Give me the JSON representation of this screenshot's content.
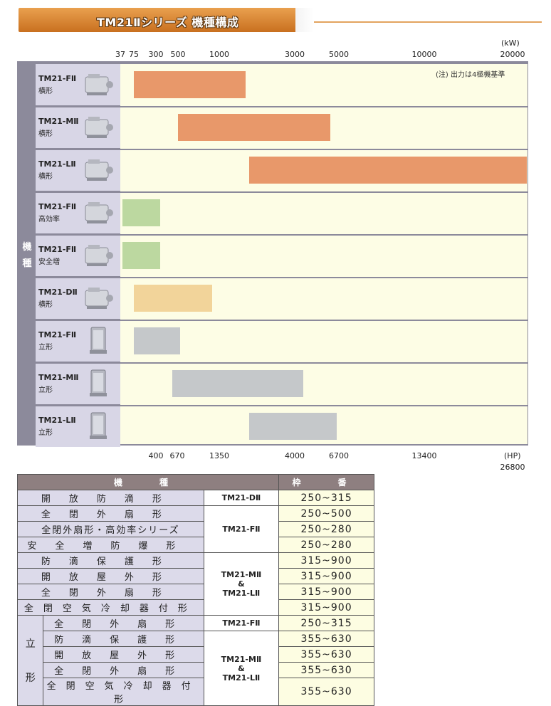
{
  "header": {
    "title": "TM21Ⅱシリーズ 機種構成"
  },
  "chart_data": {
    "type": "bar",
    "orientation": "horizontal-range",
    "unit_top": "(kW)",
    "unit_bottom": "(HP)",
    "top_ticks": [
      "37",
      "75",
      "300",
      "500",
      "1000",
      "3000",
      "5000",
      "10000",
      "20000"
    ],
    "bottom_ticks": [
      "400",
      "670",
      "1350",
      "4000",
      "6700",
      "13400",
      "26800"
    ],
    "side_label": [
      "機",
      "種"
    ],
    "note": "(注) 出力は4極機基準",
    "categories": [
      {
        "name": "TM21-FⅡ",
        "sub": "横形"
      },
      {
        "name": "TM21-MⅡ",
        "sub": "横形"
      },
      {
        "name": "TM21-LⅡ",
        "sub": "横形"
      },
      {
        "name": "TM21-FⅡ",
        "sub": "高効率"
      },
      {
        "name": "TM21-FⅡ",
        "sub": "安全増"
      },
      {
        "name": "TM21-DⅡ",
        "sub": "横形"
      },
      {
        "name": "TM21-FⅡ",
        "sub": "立形"
      },
      {
        "name": "TM21-MⅡ",
        "sub": "立形"
      },
      {
        "name": "TM21-LⅡ",
        "sub": "立形"
      }
    ],
    "ranges_kw": [
      [
        75,
        1700
      ],
      [
        500,
        4600
      ],
      [
        1800,
        20000
      ],
      [
        37,
        340
      ],
      [
        37,
        340
      ],
      [
        75,
        910
      ],
      [
        75,
        530
      ],
      [
        450,
        3400
      ],
      [
        1800,
        4900
      ]
    ],
    "colors": [
      "#e8986a",
      "#e8986a",
      "#e8986a",
      "#bcd8a0",
      "#bcd8a0",
      "#f2d49a",
      "#c5c8ca",
      "#c5c8ca",
      "#c5c8ca"
    ]
  },
  "table": {
    "headers": [
      "機　種",
      "枠　番"
    ],
    "rows": [
      {
        "type": "開放防滴形",
        "model": "TM21-DⅡ",
        "frame": "250~315"
      },
      {
        "type": "全閉外扇形",
        "model": "",
        "frame": "250~500"
      },
      {
        "type": "全閉外扇形・高効率シリーズ",
        "model": "TM21-FⅡ",
        "frame": "250~280"
      },
      {
        "type": "安全増防爆形",
        "model": "",
        "frame": "250~280"
      },
      {
        "type": "防滴保護形",
        "model": "",
        "frame": "315~900"
      },
      {
        "type": "開放屋外形",
        "model": "TM21-MⅡ",
        "frame": "315~900"
      },
      {
        "type": "全閉外扇形",
        "model": "&",
        "frame": "315~900"
      },
      {
        "type": "全閉空気冷却器付形",
        "model": "TM21-LⅡ",
        "frame": "315~900"
      }
    ],
    "vertical": {
      "label_top": "立",
      "label_bottom": "形",
      "rows": [
        {
          "type": "全閉外扇形",
          "model": "TM21-FⅡ",
          "frame": "250~315"
        },
        {
          "type": "防滴保護形",
          "model": "TM21-MⅡ",
          "frame": "355~630"
        },
        {
          "type": "開放屋外形",
          "model": "&",
          "frame": "355~630"
        },
        {
          "type": "全閉外扇形",
          "model": "TM21-LⅡ",
          "frame": "355~630"
        },
        {
          "type": "全閉空気冷却器付形",
          "model": "",
          "frame": "355~630"
        }
      ]
    }
  }
}
